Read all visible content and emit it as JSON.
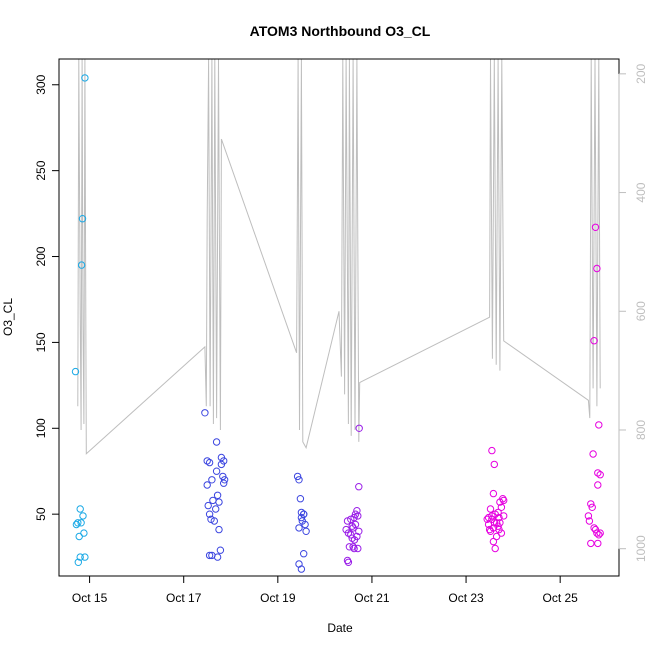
{
  "chart_data": {
    "type": "scatter",
    "title": "ATOM3 Northbound O3_CL",
    "xlabel": "Date",
    "ylabel": "O3_CL",
    "grid": false,
    "legend": "none",
    "x_ticks": [
      {
        "label": "Oct 15",
        "day": 15
      },
      {
        "label": "Oct 17",
        "day": 17
      },
      {
        "label": "Oct 19",
        "day": 19
      },
      {
        "label": "Oct 21",
        "day": 21
      },
      {
        "label": "Oct 23",
        "day": 23
      },
      {
        "label": "Oct 25",
        "day": 25
      }
    ],
    "xlim_days": [
      14.35,
      26.25
    ],
    "y_left": {
      "label": "O3_CL",
      "range": [
        14,
        315
      ],
      "ticks": [
        50,
        100,
        150,
        200,
        250,
        300
      ]
    },
    "y_right": {
      "range": [
        1046,
        175
      ],
      "reversed": true,
      "ticks": [
        200,
        400,
        600,
        800,
        1000
      ],
      "color": "#bebebe"
    },
    "colors": {
      "points_early": "#1aa9e6",
      "points_mid": "#3c46e0",
      "points_late": "#e600e0",
      "altitude_line": "#bebebe"
    },
    "series": [
      {
        "color": "#1aa9e6",
        "points": [
          [
            14.7,
            133
          ],
          [
            14.75,
            45
          ],
          [
            14.78,
            37
          ],
          [
            14.72,
            44
          ],
          [
            14.8,
            53
          ],
          [
            14.76,
            22
          ],
          [
            14.8,
            25
          ],
          [
            14.83,
            195
          ],
          [
            14.85,
            222
          ],
          [
            14.9,
            304
          ],
          [
            14.82,
            45
          ],
          [
            14.86,
            49
          ],
          [
            14.88,
            39
          ],
          [
            14.9,
            25
          ]
        ]
      },
      {
        "color": "#3c46e0",
        "points": [
          [
            17.45,
            109
          ],
          [
            17.5,
            81
          ],
          [
            17.55,
            80
          ],
          [
            17.5,
            67
          ],
          [
            17.52,
            55
          ],
          [
            17.55,
            50
          ],
          [
            17.58,
            47
          ],
          [
            17.6,
            70
          ],
          [
            17.62,
            58
          ],
          [
            17.55,
            26
          ],
          [
            17.6,
            26
          ],
          [
            17.65,
            46
          ],
          [
            17.68,
            53
          ],
          [
            17.7,
            92
          ],
          [
            17.7,
            75
          ],
          [
            17.72,
            61
          ],
          [
            17.75,
            57
          ],
          [
            17.75,
            41
          ],
          [
            17.72,
            25
          ],
          [
            17.78,
            29
          ],
          [
            17.8,
            79
          ],
          [
            17.8,
            83
          ],
          [
            17.83,
            72
          ],
          [
            17.85,
            68
          ],
          [
            17.87,
            70
          ],
          [
            17.85,
            81
          ],
          [
            19.42,
            72
          ],
          [
            19.45,
            70
          ],
          [
            19.48,
            59
          ],
          [
            19.5,
            51
          ],
          [
            19.52,
            46
          ],
          [
            19.45,
            42
          ],
          [
            19.5,
            48
          ],
          [
            19.55,
            50
          ],
          [
            19.58,
            44
          ],
          [
            19.6,
            40
          ],
          [
            19.55,
            27
          ],
          [
            19.45,
            21
          ],
          [
            19.5,
            18
          ],
          [
            19.55,
            50
          ]
        ]
      },
      {
        "color": "#9a1ee8",
        "points": [
          [
            20.45,
            41
          ],
          [
            20.48,
            46
          ],
          [
            20.5,
            39
          ],
          [
            20.52,
            31
          ],
          [
            20.55,
            38
          ],
          [
            20.48,
            23
          ],
          [
            20.5,
            22
          ],
          [
            20.55,
            47
          ],
          [
            20.58,
            43
          ],
          [
            20.6,
            31
          ],
          [
            20.62,
            30
          ],
          [
            20.6,
            42
          ],
          [
            20.62,
            48
          ],
          [
            20.65,
            50
          ],
          [
            20.68,
            52
          ],
          [
            20.7,
            49
          ],
          [
            20.72,
            40
          ],
          [
            20.7,
            30
          ],
          [
            20.65,
            44
          ],
          [
            20.72,
            66
          ],
          [
            20.73,
            100
          ],
          [
            20.63,
            35
          ],
          [
            20.68,
            37
          ],
          [
            20.58,
            36
          ]
        ]
      },
      {
        "color": "#e600e0",
        "points": [
          [
            23.45,
            47
          ],
          [
            23.48,
            44
          ],
          [
            23.5,
            41
          ],
          [
            23.52,
            53
          ],
          [
            23.55,
            49
          ],
          [
            23.55,
            87
          ],
          [
            23.58,
            62
          ],
          [
            23.6,
            79
          ],
          [
            23.58,
            34
          ],
          [
            23.62,
            30
          ],
          [
            23.65,
            45
          ],
          [
            23.68,
            51
          ],
          [
            23.7,
            48
          ],
          [
            23.72,
            57
          ],
          [
            23.75,
            54
          ],
          [
            23.78,
            59
          ],
          [
            23.8,
            58
          ],
          [
            23.75,
            39
          ],
          [
            23.7,
            41
          ],
          [
            23.65,
            37
          ],
          [
            23.6,
            45
          ],
          [
            23.52,
            40
          ],
          [
            23.48,
            48
          ],
          [
            23.62,
            50
          ],
          [
            23.72,
            45
          ],
          [
            23.68,
            43
          ],
          [
            23.58,
            42
          ],
          [
            23.55,
            47
          ],
          [
            23.8,
            49
          ],
          [
            25.6,
            49
          ],
          [
            25.62,
            46
          ],
          [
            25.65,
            56
          ],
          [
            25.68,
            54
          ],
          [
            25.65,
            33
          ],
          [
            25.7,
            85
          ],
          [
            25.72,
            151
          ],
          [
            25.75,
            217
          ],
          [
            25.78,
            193
          ],
          [
            25.8,
            74
          ],
          [
            25.82,
            102
          ],
          [
            25.85,
            73
          ],
          [
            25.8,
            67
          ],
          [
            25.75,
            41
          ],
          [
            25.78,
            39
          ],
          [
            25.82,
            38
          ],
          [
            25.85,
            39
          ],
          [
            25.8,
            33
          ],
          [
            25.72,
            42
          ]
        ]
      }
    ],
    "altitude_line": {
      "color": "#bebebe",
      "points": [
        [
          14.75,
          760
        ],
        [
          14.77,
          175
        ],
        [
          14.8,
          600
        ],
        [
          14.82,
          800
        ],
        [
          14.84,
          175
        ],
        [
          14.86,
          620
        ],
        [
          14.88,
          790
        ],
        [
          14.9,
          175
        ],
        [
          14.93,
          840
        ],
        [
          17.45,
          660
        ],
        [
          17.48,
          760
        ],
        [
          17.5,
          440
        ],
        [
          17.53,
          175
        ],
        [
          17.56,
          760
        ],
        [
          17.6,
          175
        ],
        [
          17.63,
          790
        ],
        [
          17.66,
          175
        ],
        [
          17.7,
          780
        ],
        [
          17.74,
          175
        ],
        [
          17.78,
          800
        ],
        [
          17.8,
          310
        ],
        [
          19.4,
          670
        ],
        [
          19.43,
          175
        ],
        [
          19.46,
          800
        ],
        [
          19.5,
          175
        ],
        [
          19.53,
          820
        ],
        [
          19.6,
          830
        ],
        [
          20.3,
          600
        ],
        [
          20.35,
          710
        ],
        [
          20.38,
          175
        ],
        [
          20.42,
          740
        ],
        [
          20.45,
          175
        ],
        [
          20.5,
          790
        ],
        [
          20.52,
          175
        ],
        [
          20.56,
          810
        ],
        [
          20.6,
          175
        ],
        [
          20.64,
          800
        ],
        [
          20.68,
          175
        ],
        [
          20.72,
          820
        ],
        [
          20.74,
          720
        ],
        [
          23.5,
          610
        ],
        [
          23.52,
          175
        ],
        [
          23.56,
          680
        ],
        [
          23.6,
          175
        ],
        [
          23.64,
          690
        ],
        [
          23.68,
          175
        ],
        [
          23.72,
          700
        ],
        [
          23.76,
          175
        ],
        [
          23.8,
          650
        ],
        [
          25.6,
          750
        ],
        [
          25.63,
          780
        ],
        [
          25.66,
          175
        ],
        [
          25.7,
          730
        ],
        [
          25.74,
          175
        ],
        [
          25.78,
          760
        ],
        [
          25.82,
          175
        ],
        [
          25.85,
          730
        ]
      ]
    }
  }
}
